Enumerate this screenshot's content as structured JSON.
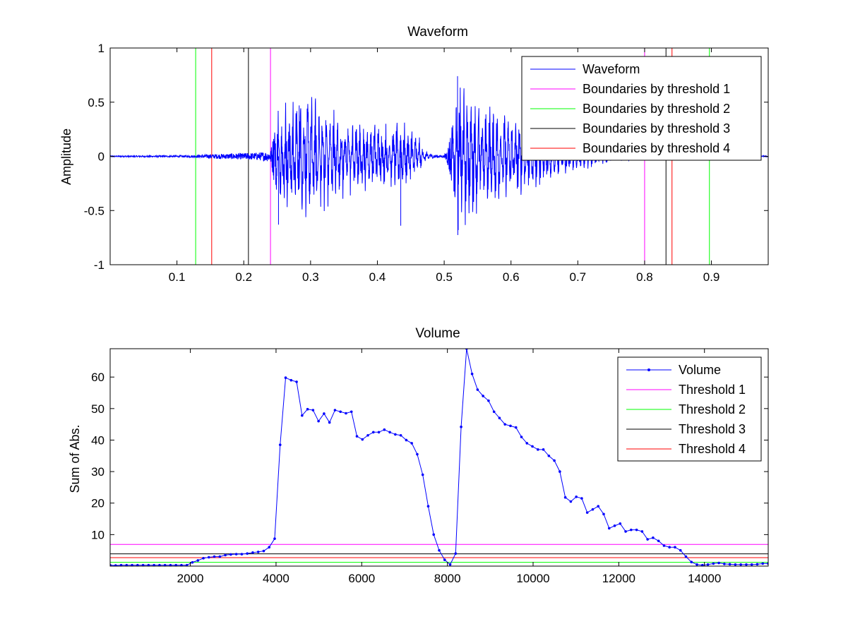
{
  "chart_data": [
    {
      "type": "line",
      "title": "Waveform",
      "xlabel": "",
      "ylabel": "Amplitude",
      "xlim": [
        0.0,
        0.985
      ],
      "ylim": [
        -1,
        1
      ],
      "xticks": [
        0.1,
        0.2,
        0.3,
        0.4,
        0.5,
        0.6,
        0.7,
        0.8,
        0.9
      ],
      "xtick_labels": [
        "0.1",
        "0.2",
        "0.3",
        "0.4",
        "0.5",
        "0.6",
        "0.7",
        "0.8",
        "0.9"
      ],
      "yticks": [
        -1,
        -0.5,
        0,
        0.5,
        1
      ],
      "ytick_labels": [
        "-1",
        "-0.5",
        "0",
        "0.5",
        "1"
      ],
      "legend_position": "top-right",
      "waveform": {
        "name": "Waveform",
        "color": "#0000ff",
        "envelope": [
          [
            0.0,
            0.005
          ],
          [
            0.1,
            0.008
          ],
          [
            0.13,
            0.012
          ],
          [
            0.15,
            0.02
          ],
          [
            0.2,
            0.03
          ],
          [
            0.22,
            0.035
          ],
          [
            0.24,
            0.05
          ],
          [
            0.25,
            0.4
          ],
          [
            0.27,
            0.45
          ],
          [
            0.3,
            0.46
          ],
          [
            0.33,
            0.38
          ],
          [
            0.36,
            0.3
          ],
          [
            0.4,
            0.25
          ],
          [
            0.44,
            0.25
          ],
          [
            0.46,
            0.18
          ],
          [
            0.47,
            0.06
          ],
          [
            0.48,
            0.02
          ],
          [
            0.5,
            0.01
          ],
          [
            0.505,
            0.08
          ],
          [
            0.52,
            0.6
          ],
          [
            0.54,
            0.45
          ],
          [
            0.58,
            0.35
          ],
          [
            0.62,
            0.28
          ],
          [
            0.66,
            0.2
          ],
          [
            0.7,
            0.12
          ],
          [
            0.74,
            0.06
          ],
          [
            0.78,
            0.03
          ],
          [
            0.8,
            0.02
          ],
          [
            0.84,
            0.01
          ],
          [
            0.9,
            0.008
          ],
          [
            0.985,
            0.005
          ]
        ],
        "spikes": [
          [
            0.52,
            0.74
          ],
          [
            0.521,
            -0.68
          ],
          [
            0.283,
            0.47
          ],
          [
            0.252,
            -0.63
          ],
          [
            0.435,
            -0.64
          ]
        ]
      },
      "boundary_series": [
        {
          "name": "Boundaries by threshold 1",
          "color": "#ff00ff",
          "x": [
            0.24,
            0.8
          ]
        },
        {
          "name": "Boundaries by threshold 2",
          "color": "#00ff00",
          "x": [
            0.128,
            0.897
          ]
        },
        {
          "name": "Boundaries by threshold 3",
          "color": "#000000",
          "x": [
            0.207,
            0.832
          ]
        },
        {
          "name": "Boundaries by threshold 4",
          "color": "#ff0000",
          "x": [
            0.152,
            0.841
          ]
        }
      ]
    },
    {
      "type": "line",
      "title": "Volume",
      "xlabel": "",
      "ylabel": "Sum of Abs.",
      "xlim": [
        128,
        15488
      ],
      "ylim": [
        0,
        69
      ],
      "xticks": [
        2000,
        4000,
        6000,
        8000,
        10000,
        12000,
        14000
      ],
      "xtick_labels": [
        "2000",
        "4000",
        "6000",
        "8000",
        "10000",
        "12000",
        "14000"
      ],
      "yticks": [
        10,
        20,
        30,
        40,
        50,
        60
      ],
      "ytick_labels": [
        "10",
        "20",
        "30",
        "40",
        "50",
        "60"
      ],
      "legend_position": "top-right",
      "volume": {
        "name": "Volume",
        "color": "#0000ff",
        "x": [
          128,
          256,
          384,
          512,
          640,
          768,
          896,
          1024,
          1152,
          1280,
          1408,
          1536,
          1664,
          1792,
          1920,
          2048,
          2176,
          2304,
          2432,
          2560,
          2688,
          2816,
          2944,
          3072,
          3200,
          3328,
          3456,
          3584,
          3712,
          3840,
          3968,
          4096,
          4224,
          4352,
          4480,
          4608,
          4736,
          4864,
          4992,
          5120,
          5248,
          5376,
          5504,
          5632,
          5760,
          5888,
          6016,
          6144,
          6272,
          6400,
          6528,
          6656,
          6784,
          6912,
          7040,
          7168,
          7296,
          7424,
          7552,
          7680,
          7808,
          7936,
          8064,
          8192,
          8320,
          8448,
          8576,
          8704,
          8832,
          8960,
          9088,
          9216,
          9344,
          9472,
          9600,
          9728,
          9856,
          9984,
          10112,
          10240,
          10368,
          10496,
          10624,
          10752,
          10880,
          11008,
          11136,
          11264,
          11392,
          11520,
          11648,
          11776,
          11904,
          12032,
          12160,
          12288,
          12416,
          12544,
          12672,
          12800,
          12928,
          13056,
          13184,
          13312,
          13440,
          13568,
          13696,
          13824,
          13952,
          14080,
          14208,
          14336,
          14464,
          14592,
          14720,
          14848,
          14976,
          15104,
          15232,
          15360,
          15488
        ],
        "y": [
          0.3,
          0.2,
          0.3,
          0.3,
          0.3,
          0.3,
          0.3,
          0.3,
          0.3,
          0.3,
          0.3,
          0.3,
          0.3,
          0.3,
          0.3,
          1.2,
          1.8,
          2.5,
          2.8,
          3.0,
          3.0,
          3.5,
          3.7,
          3.8,
          3.8,
          4.0,
          4.3,
          4.5,
          4.8,
          6.0,
          8.7,
          38.5,
          59.8,
          59.0,
          58.5,
          47.8,
          49.8,
          49.5,
          46.0,
          48.4,
          45.6,
          49.5,
          49.0,
          48.5,
          49.0,
          41.2,
          40.2,
          41.5,
          42.5,
          42.5,
          43.3,
          42.5,
          41.8,
          41.5,
          40.0,
          39.0,
          35.5,
          29.0,
          19.0,
          10.0,
          5.0,
          2.0,
          0.5,
          4.0,
          44.2,
          69.0,
          61.0,
          56.0,
          54.0,
          52.5,
          49.0,
          47.0,
          45.0,
          44.5,
          44.0,
          41.0,
          39.0,
          38.0,
          37.0,
          37.0,
          35.0,
          33.5,
          30.0,
          21.8,
          20.5,
          22.0,
          21.5,
          17.0,
          18.0,
          19.0,
          16.5,
          12.0,
          12.8,
          13.5,
          11.0,
          11.5,
          11.5,
          11.0,
          8.5,
          9.0,
          8.0,
          6.5,
          6.0,
          6.0,
          5.0,
          3.0,
          1.3,
          0.5,
          0.3,
          0.5,
          0.8,
          1.0,
          0.7,
          0.6,
          0.5,
          0.5,
          0.5,
          0.5,
          0.6,
          0.8,
          0.8
        ]
      },
      "threshold_series": [
        {
          "name": "Threshold 1",
          "color": "#ff00ff",
          "y": 6.9
        },
        {
          "name": "Threshold 2",
          "color": "#00ff00",
          "y": 1.2
        },
        {
          "name": "Threshold 3",
          "color": "#000000",
          "y": 3.9
        },
        {
          "name": "Threshold 4",
          "color": "#ff0000",
          "y": 2.7
        }
      ]
    }
  ]
}
